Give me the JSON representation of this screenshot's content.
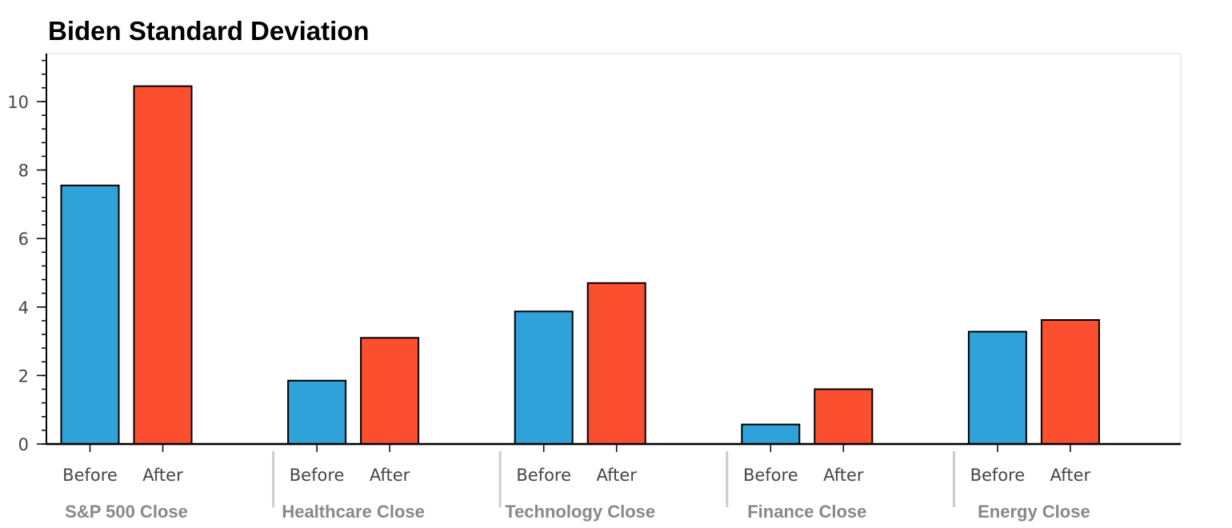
{
  "chart_data": {
    "type": "bar",
    "title": "Biden Standard Deviation",
    "xlabel": "",
    "ylabel": "",
    "categories": [
      "S&P 500 Close",
      "Healthcare Close",
      "Technology Close",
      "Finance Close",
      "Energy Close"
    ],
    "subcategories": [
      "Before",
      "After"
    ],
    "series": [
      {
        "name": "Before",
        "color": "#30a2da",
        "values": [
          7.55,
          1.85,
          3.87,
          0.57,
          3.28
        ]
      },
      {
        "name": "After",
        "color": "#fc4f30",
        "values": [
          10.45,
          3.1,
          4.7,
          1.6,
          3.62
        ]
      }
    ],
    "ylim": [
      0,
      11.4
    ],
    "yticks": [
      0,
      2,
      4,
      6,
      8,
      10
    ],
    "grid": false,
    "legend": "none"
  }
}
